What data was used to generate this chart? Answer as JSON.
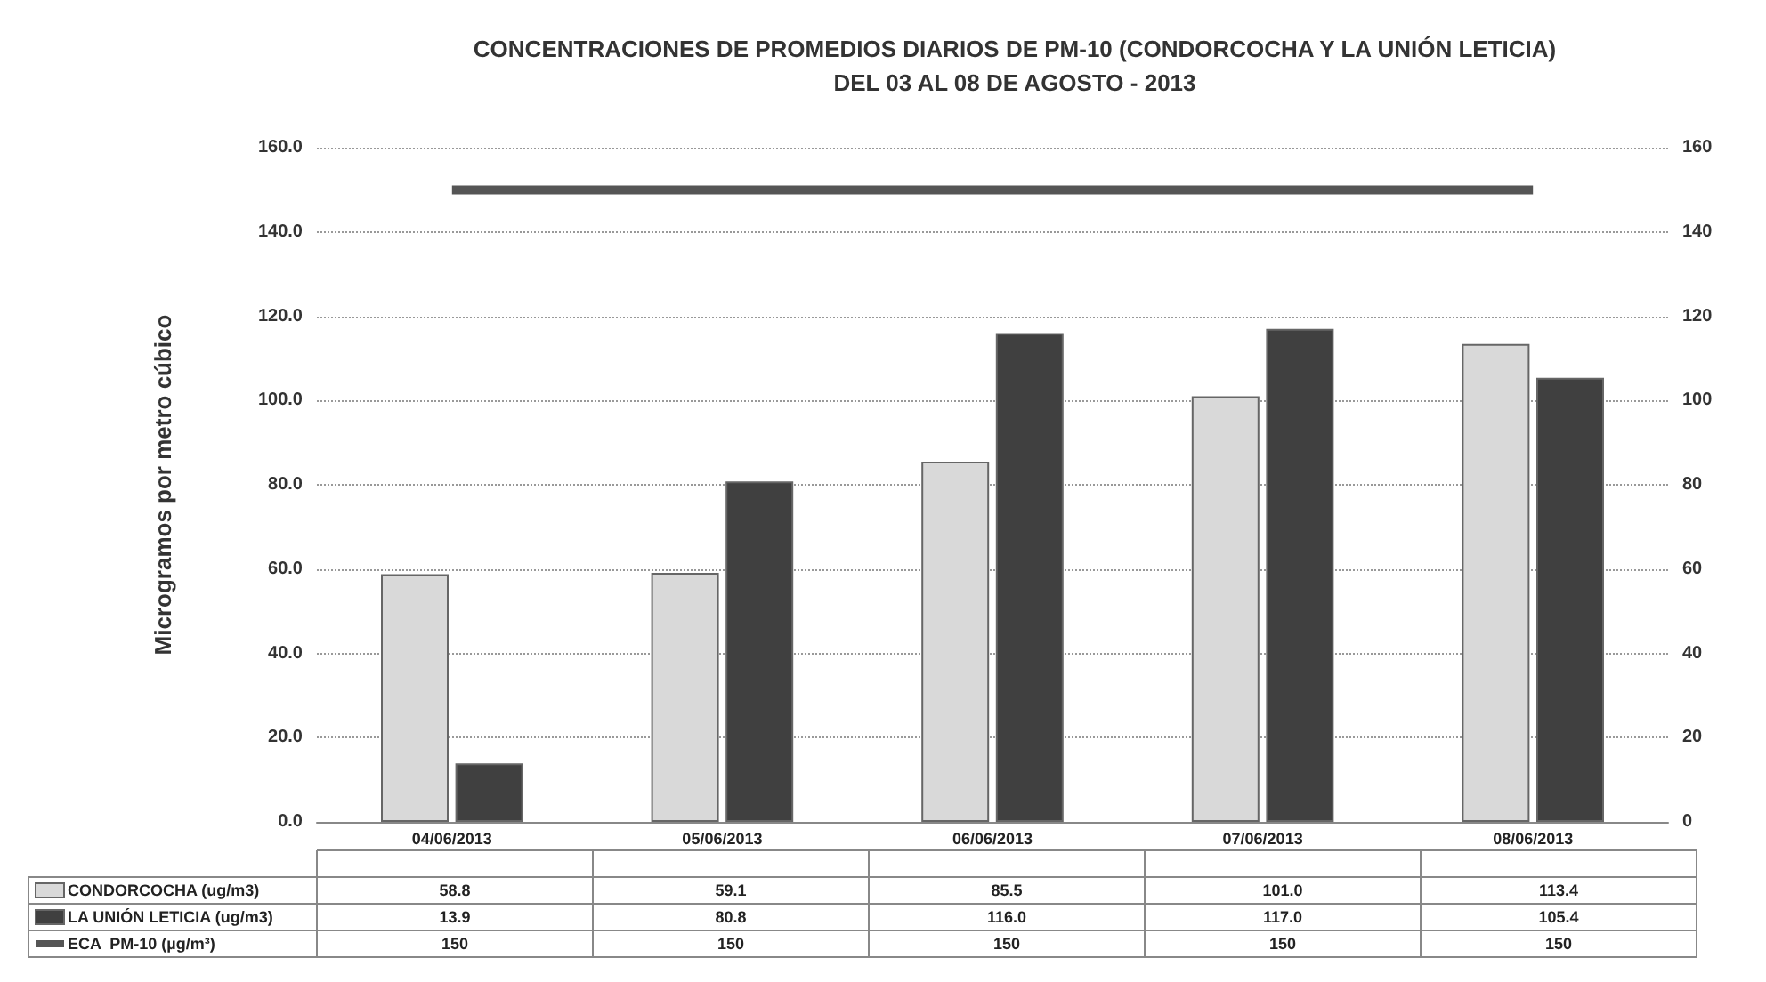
{
  "chart_data": {
    "type": "bar",
    "title": "CONCENTRACIONES DE PROMEDIOS DIARIOS DE PM-10 (CONDORCOCHA Y LA UNIÓN LETICIA)",
    "subtitle": "DEL 03 AL 08 DE AGOSTO - 2013",
    "ylabel": "Microgramos por metro cúbico",
    "categories": [
      "04/06/2013",
      "05/06/2013",
      "06/06/2013",
      "07/06/2013",
      "08/06/2013"
    ],
    "series": [
      {
        "name": "CONDORCOCHA (ug/m3)",
        "color": "#d9d9d9",
        "values": [
          58.8,
          59.1,
          85.5,
          101.0,
          113.4
        ],
        "value_labels": [
          "58.8",
          "59.1",
          "85.5",
          "101.0",
          "113.4"
        ]
      },
      {
        "name": "LA UNIÓN LETICIA (ug/m3)",
        "color": "#404040",
        "values": [
          13.9,
          80.8,
          116.0,
          117.0,
          105.4
        ],
        "value_labels": [
          "13.9",
          "80.8",
          "116.0",
          "117.0",
          "105.4"
        ]
      },
      {
        "name": "ECA  PM-10 (µg/m³)",
        "type": "line",
        "color": "#555555",
        "values": [
          150,
          150,
          150,
          150,
          150
        ],
        "value_labels": [
          "150",
          "150",
          "150",
          "150",
          "150"
        ]
      }
    ],
    "ylim": [
      0,
      160
    ],
    "yticks": [
      {
        "value": 0,
        "label": "0.0"
      },
      {
        "value": 20,
        "label": "20.0"
      },
      {
        "value": 40,
        "label": "40.0"
      },
      {
        "value": 60,
        "label": "60.0"
      },
      {
        "value": 80,
        "label": "80.0"
      },
      {
        "value": 100,
        "label": "100.0"
      },
      {
        "value": 120,
        "label": "120.0"
      },
      {
        "value": 140,
        "label": "140.0"
      },
      {
        "value": 160,
        "label": "160.0"
      }
    ],
    "y2lim": [
      0,
      160
    ],
    "y2ticks": [
      0,
      20,
      40,
      60,
      80,
      100,
      120,
      140,
      160
    ],
    "grid": "y",
    "legend": "bottom",
    "marker": "none"
  }
}
